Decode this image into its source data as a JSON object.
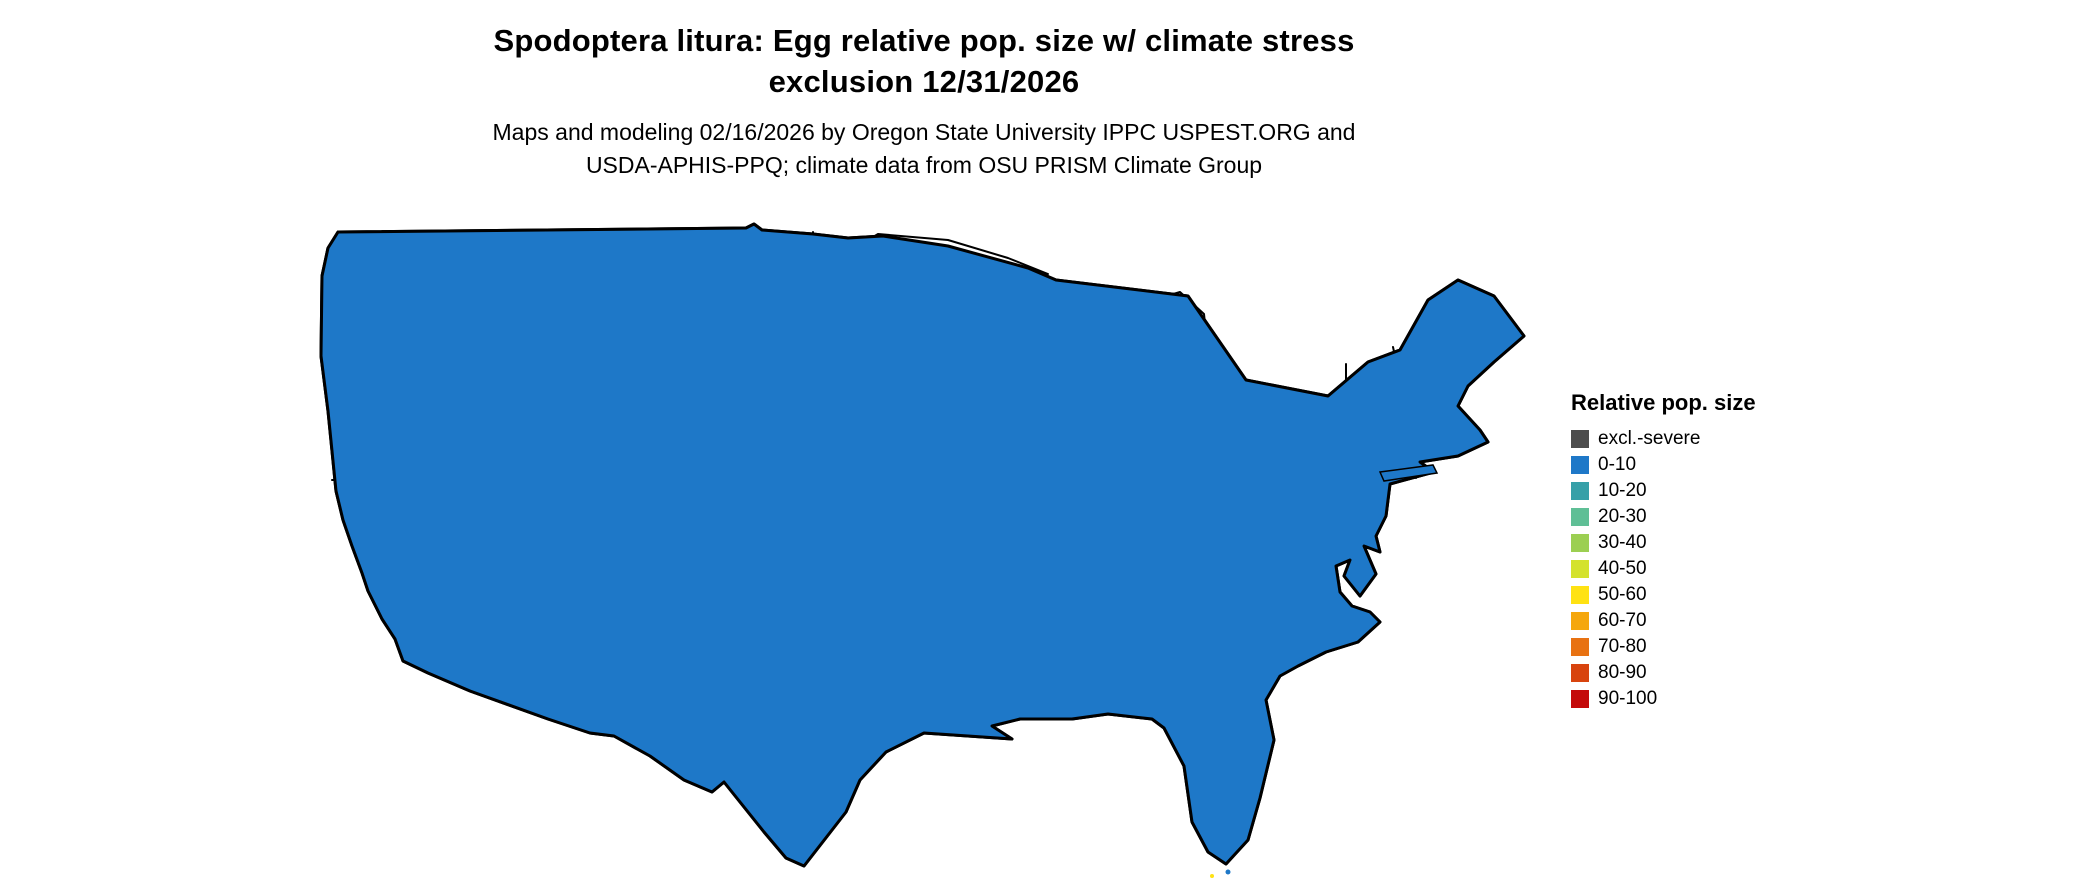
{
  "header": {
    "title_line1": "Spodoptera litura: Egg relative pop. size w/ climate stress",
    "title_line2": "exclusion 12/31/2026",
    "subtitle_line1": "Maps and modeling 02/16/2026 by Oregon State University IPPC USPEST.ORG and",
    "subtitle_line2": "USDA-APHIS-PPQ; climate data from OSU PRISM Climate Group"
  },
  "legend": {
    "title": "Relative pop. size",
    "items": [
      {
        "label": "excl.-severe",
        "color": "#4d4d4d"
      },
      {
        "label": "0-10",
        "color": "#1e78c8"
      },
      {
        "label": "10-20",
        "color": "#36a0a8"
      },
      {
        "label": "20-30",
        "color": "#5fbf96"
      },
      {
        "label": "30-40",
        "color": "#9ccf52"
      },
      {
        "label": "40-50",
        "color": "#d4e22e"
      },
      {
        "label": "50-60",
        "color": "#ffe213"
      },
      {
        "label": "60-70",
        "color": "#f5a70d"
      },
      {
        "label": "70-80",
        "color": "#e87212"
      },
      {
        "label": "80-90",
        "color": "#d8440e"
      },
      {
        "label": "90-100",
        "color": "#c40a0a"
      }
    ]
  }
}
